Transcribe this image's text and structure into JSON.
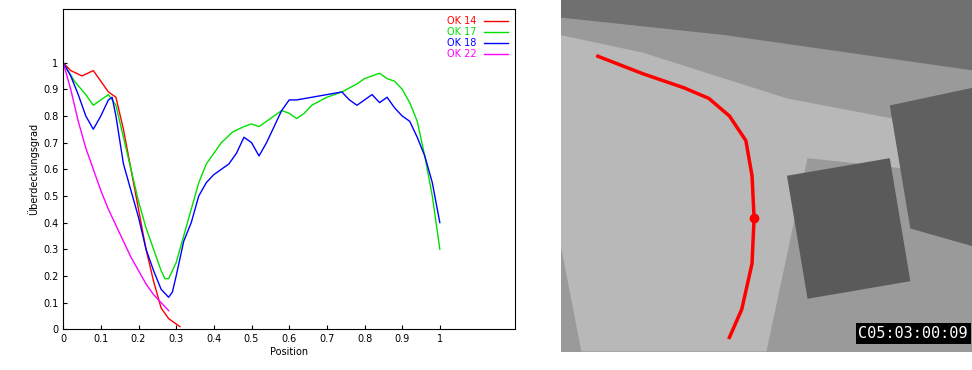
{
  "chart_data": {
    "type": "line",
    "xlabel": "Position",
    "ylabel": "Überdeckungsgrad",
    "xlim": [
      0,
      1.2
    ],
    "ylim": [
      0,
      1.2
    ],
    "xticks": [
      0,
      0.1,
      0.2,
      0.3,
      0.4,
      0.5,
      0.6,
      0.7,
      0.8,
      0.9,
      1
    ],
    "yticks": [
      0,
      0.1,
      0.2,
      0.3,
      0.4,
      0.5,
      0.6,
      0.7,
      0.8,
      0.9,
      1
    ],
    "legend": "upper right",
    "series": [
      {
        "name": "OK 14",
        "color": "#ff0000",
        "x": [
          0,
          0.02,
          0.05,
          0.08,
          0.1,
          0.12,
          0.14,
          0.16,
          0.18,
          0.2,
          0.22,
          0.24,
          0.26,
          0.28,
          0.3,
          0.31
        ],
        "values": [
          1.0,
          0.97,
          0.95,
          0.97,
          0.93,
          0.89,
          0.87,
          0.75,
          0.6,
          0.45,
          0.3,
          0.18,
          0.08,
          0.04,
          0.02,
          0.01
        ]
      },
      {
        "name": "OK 17",
        "color": "#00e000",
        "x": [
          0,
          0.03,
          0.06,
          0.08,
          0.1,
          0.12,
          0.14,
          0.16,
          0.18,
          0.2,
          0.22,
          0.24,
          0.26,
          0.27,
          0.28,
          0.3,
          0.32,
          0.34,
          0.36,
          0.38,
          0.4,
          0.42,
          0.45,
          0.48,
          0.5,
          0.52,
          0.54,
          0.56,
          0.58,
          0.6,
          0.62,
          0.64,
          0.66,
          0.7,
          0.74,
          0.78,
          0.8,
          0.82,
          0.84,
          0.86,
          0.88,
          0.9,
          0.92,
          0.94,
          0.96,
          0.98,
          1.0
        ],
        "values": [
          1.0,
          0.93,
          0.88,
          0.84,
          0.86,
          0.88,
          0.84,
          0.72,
          0.6,
          0.48,
          0.38,
          0.3,
          0.22,
          0.19,
          0.19,
          0.25,
          0.35,
          0.45,
          0.55,
          0.62,
          0.66,
          0.7,
          0.74,
          0.76,
          0.77,
          0.76,
          0.78,
          0.8,
          0.82,
          0.81,
          0.79,
          0.81,
          0.84,
          0.87,
          0.89,
          0.92,
          0.94,
          0.95,
          0.96,
          0.94,
          0.93,
          0.9,
          0.85,
          0.78,
          0.65,
          0.5,
          0.3
        ]
      },
      {
        "name": "OK 18",
        "color": "#0000ff",
        "x": [
          0,
          0.02,
          0.04,
          0.06,
          0.08,
          0.1,
          0.12,
          0.13,
          0.14,
          0.16,
          0.18,
          0.2,
          0.22,
          0.24,
          0.26,
          0.28,
          0.29,
          0.3,
          0.32,
          0.34,
          0.36,
          0.38,
          0.4,
          0.42,
          0.44,
          0.46,
          0.48,
          0.5,
          0.52,
          0.54,
          0.56,
          0.58,
          0.6,
          0.62,
          0.66,
          0.7,
          0.74,
          0.76,
          0.78,
          0.8,
          0.82,
          0.84,
          0.86,
          0.88,
          0.9,
          0.92,
          0.94,
          0.96,
          0.98,
          1.0
        ],
        "values": [
          1.0,
          0.95,
          0.88,
          0.8,
          0.75,
          0.8,
          0.86,
          0.87,
          0.8,
          0.62,
          0.52,
          0.42,
          0.3,
          0.22,
          0.15,
          0.12,
          0.14,
          0.2,
          0.33,
          0.4,
          0.5,
          0.55,
          0.58,
          0.6,
          0.62,
          0.66,
          0.72,
          0.7,
          0.65,
          0.7,
          0.76,
          0.82,
          0.86,
          0.86,
          0.87,
          0.88,
          0.89,
          0.86,
          0.84,
          0.86,
          0.88,
          0.85,
          0.87,
          0.83,
          0.8,
          0.78,
          0.72,
          0.65,
          0.55,
          0.4
        ]
      },
      {
        "name": "OK 22",
        "color": "#ff00ff",
        "x": [
          0,
          0.02,
          0.04,
          0.06,
          0.08,
          0.1,
          0.12,
          0.14,
          0.16,
          0.18,
          0.2,
          0.22,
          0.24,
          0.26,
          0.28
        ],
        "values": [
          1.0,
          0.9,
          0.78,
          0.68,
          0.6,
          0.52,
          0.45,
          0.39,
          0.33,
          0.27,
          0.22,
          0.17,
          0.13,
          0.1,
          0.07
        ]
      }
    ]
  },
  "photo": {
    "timestamp": "C05:03:00:09"
  }
}
